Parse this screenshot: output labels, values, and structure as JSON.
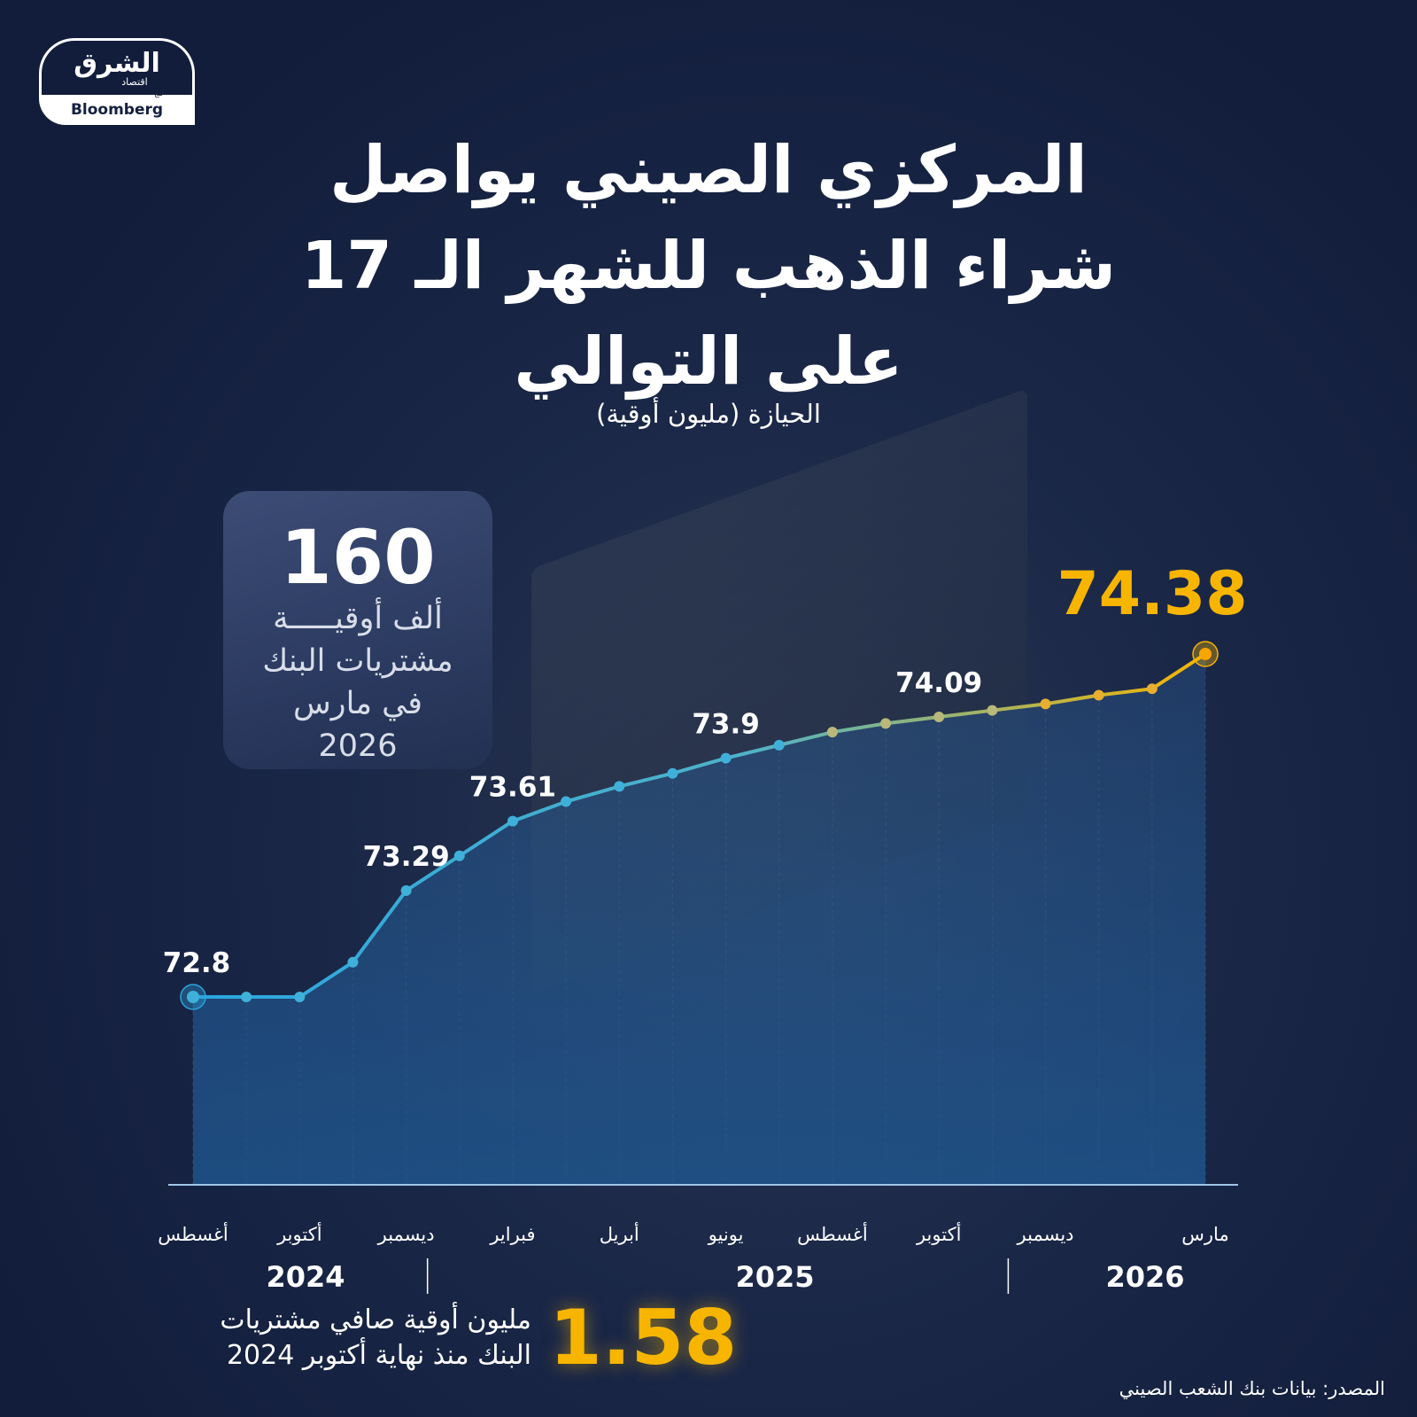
{
  "logo": {
    "brand": "الشرق",
    "sub": "اقتصاد",
    "with": "مع",
    "partner": "Bloomberg"
  },
  "title": [
    "المركزي الصيني يواصل",
    "شراء الذهب للشهر الـ 17",
    "على التوالي"
  ],
  "subtitle": "الحيازة (مليون أوقية)",
  "highlight_box": {
    "value": "160",
    "lines": [
      "ألف أوقيـــــة",
      "مشتريات البنك",
      "في مارس",
      "2026"
    ]
  },
  "summary": {
    "value": "1.58",
    "text": [
      "مليون أوقية صافي مشتريات",
      "البنك منذ نهاية أكتوبر 2024"
    ]
  },
  "source": "المصدر: بيانات بنك الشعب الصيني",
  "colors": {
    "start": "#2aa6e0",
    "end": "#f7b500",
    "accent": "#f7b500"
  },
  "chart_data": {
    "type": "line",
    "title": "المركزي الصيني يواصل شراء الذهب للشهر الـ 17 على التوالي",
    "ylabel": "الحيازة (مليون أوقية)",
    "x": [
      "2024-08",
      "2024-09",
      "2024-10",
      "2024-11",
      "2024-12",
      "2025-01",
      "2025-02",
      "2025-03",
      "2025-04",
      "2025-05",
      "2025-06",
      "2025-07",
      "2025-08",
      "2025-09",
      "2025-10",
      "2025-11",
      "2025-12",
      "2026-01",
      "2026-02",
      "2026-03"
    ],
    "values": [
      72.8,
      72.8,
      72.8,
      72.96,
      73.29,
      73.45,
      73.61,
      73.7,
      73.77,
      73.83,
      73.9,
      73.96,
      74.02,
      74.06,
      74.09,
      74.12,
      74.15,
      74.19,
      74.22,
      74.38
    ],
    "data_labels": {
      "0": "72.8",
      "4": "73.29",
      "6": "73.61",
      "10": "73.9",
      "14": "74.09",
      "19": "74.38"
    },
    "tick_labels": {
      "0": "أغسطس",
      "2": "أكتوبر",
      "4": "ديسمبر",
      "6": "فبراير",
      "8": "أبريل",
      "10": "يونيو",
      "12": "أغسطس",
      "14": "أكتوبر",
      "16": "ديسمبر",
      "19": "مارس"
    },
    "years": [
      {
        "label": "2024",
        "from": 0,
        "to": 4
      },
      {
        "label": "2025",
        "from": 4,
        "to": 17
      },
      {
        "label": "2026",
        "from": 17,
        "to": 19
      }
    ],
    "ylim": [
      72.8,
      74.38
    ],
    "grid": "vertical"
  }
}
